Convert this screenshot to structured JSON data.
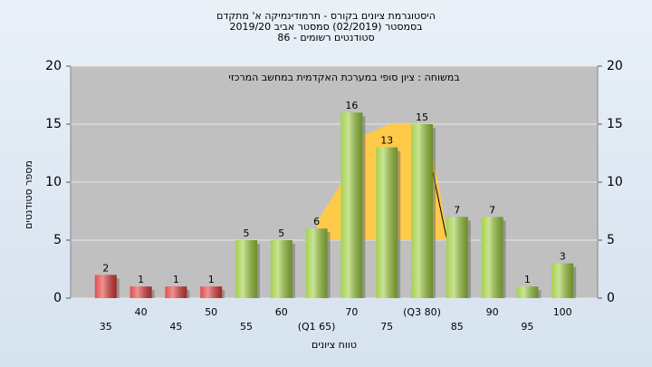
{
  "chart_data": {
    "type": "bar",
    "title": [
      "היסטוגרמת ציונים בקורס - תרמודינמיקה א' מתקדם",
      "בסמסטר  (02/2019)  סמסטר אביב 2019/20",
      "סטודנטים רשומים - 86"
    ],
    "annotation": "במשוחה : ציון סופי במערכת האקדמית במחשב המרכזי",
    "y_label": "מספר סטודנטים",
    "x_label": "טווח ציונים",
    "categories": [
      "35",
      "40",
      "45",
      "50",
      "55",
      "60",
      "(Q1 65)",
      "70",
      "75",
      "(Q3 80)",
      "85",
      "90",
      "95",
      "100"
    ],
    "values": [
      2,
      1,
      1,
      1,
      5,
      5,
      6,
      16,
      13,
      15,
      7,
      7,
      1,
      3
    ],
    "colors": [
      "#e03a3a",
      "#e03a3a",
      "#e03a3a",
      "#e03a3a",
      "#9ccc3c",
      "#9ccc3c",
      "#9ccc3c",
      "#9ccc3c",
      "#9ccc3c",
      "#9ccc3c",
      "#9ccc3c",
      "#9ccc3c",
      "#9ccc3c",
      "#9ccc3c"
    ],
    "ylim": [
      0,
      20
    ],
    "yticks": [
      0,
      5,
      10,
      15,
      20
    ],
    "y2lim": [
      0,
      20
    ],
    "y2ticks": [
      0,
      5,
      10,
      15,
      20
    ],
    "grid": true
  }
}
